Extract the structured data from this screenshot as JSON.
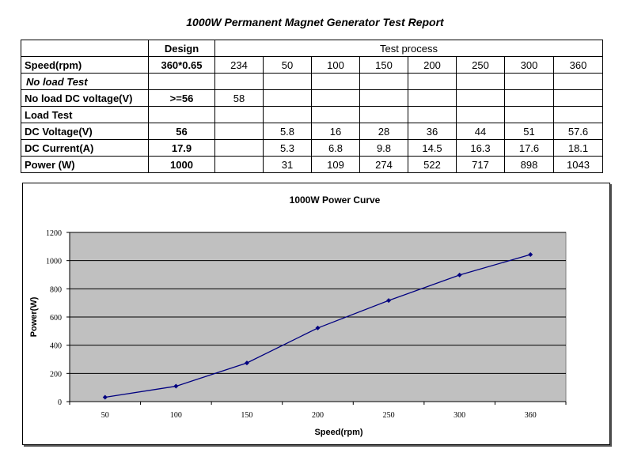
{
  "report_title": "1000W Permanent Magnet Generator Test Report",
  "table": {
    "header": {
      "design": "Design",
      "test_process": "Test process"
    },
    "rows": [
      {
        "label": "Speed(rpm)",
        "italic": false,
        "design": "360*0.65",
        "cells": [
          "234",
          "50",
          "100",
          "150",
          "200",
          "250",
          "300",
          "360"
        ]
      },
      {
        "label": "No load Test",
        "italic": true,
        "design": "",
        "cells": [
          "",
          "",
          "",
          "",
          "",
          "",
          "",
          ""
        ]
      },
      {
        "label": "No load DC voltage(V)",
        "italic": false,
        "design": ">=56",
        "cells": [
          "58",
          "",
          "",
          "",
          "",
          "",
          "",
          ""
        ]
      },
      {
        "label": "Load Test",
        "italic": false,
        "design": "",
        "cells": [
          "",
          "",
          "",
          "",
          "",
          "",
          "",
          ""
        ]
      },
      {
        "label": "DC Voltage(V)",
        "italic": false,
        "design": "56",
        "cells": [
          "",
          "5.8",
          "16",
          "28",
          "36",
          "44",
          "51",
          "57.6"
        ]
      },
      {
        "label": "DC Current(A)",
        "italic": false,
        "design": "17.9",
        "cells": [
          "",
          "5.3",
          "6.8",
          "9.8",
          "14.5",
          "16.3",
          "17.6",
          "18.1"
        ]
      },
      {
        "label": "Power (W)",
        "italic": false,
        "design": "1000",
        "cells": [
          "",
          "31",
          "109",
          "274",
          "522",
          "717",
          "898",
          "1043"
        ]
      }
    ]
  },
  "chart_data": {
    "type": "line",
    "title": "1000W Power Curve",
    "xlabel": "Speed(rpm)",
    "ylabel": "Power(W)",
    "categories": [
      "50",
      "100",
      "150",
      "200",
      "250",
      "300",
      "360"
    ],
    "series": [
      {
        "values": [
          31,
          109,
          274,
          522,
          717,
          898,
          1043
        ]
      }
    ],
    "ylim": [
      0,
      1200
    ],
    "yticks": [
      0,
      200,
      400,
      600,
      800,
      1000,
      1200
    ],
    "grid": true,
    "legend": "none",
    "plot_background": "#c0c0c0",
    "line_color": "#000080"
  }
}
